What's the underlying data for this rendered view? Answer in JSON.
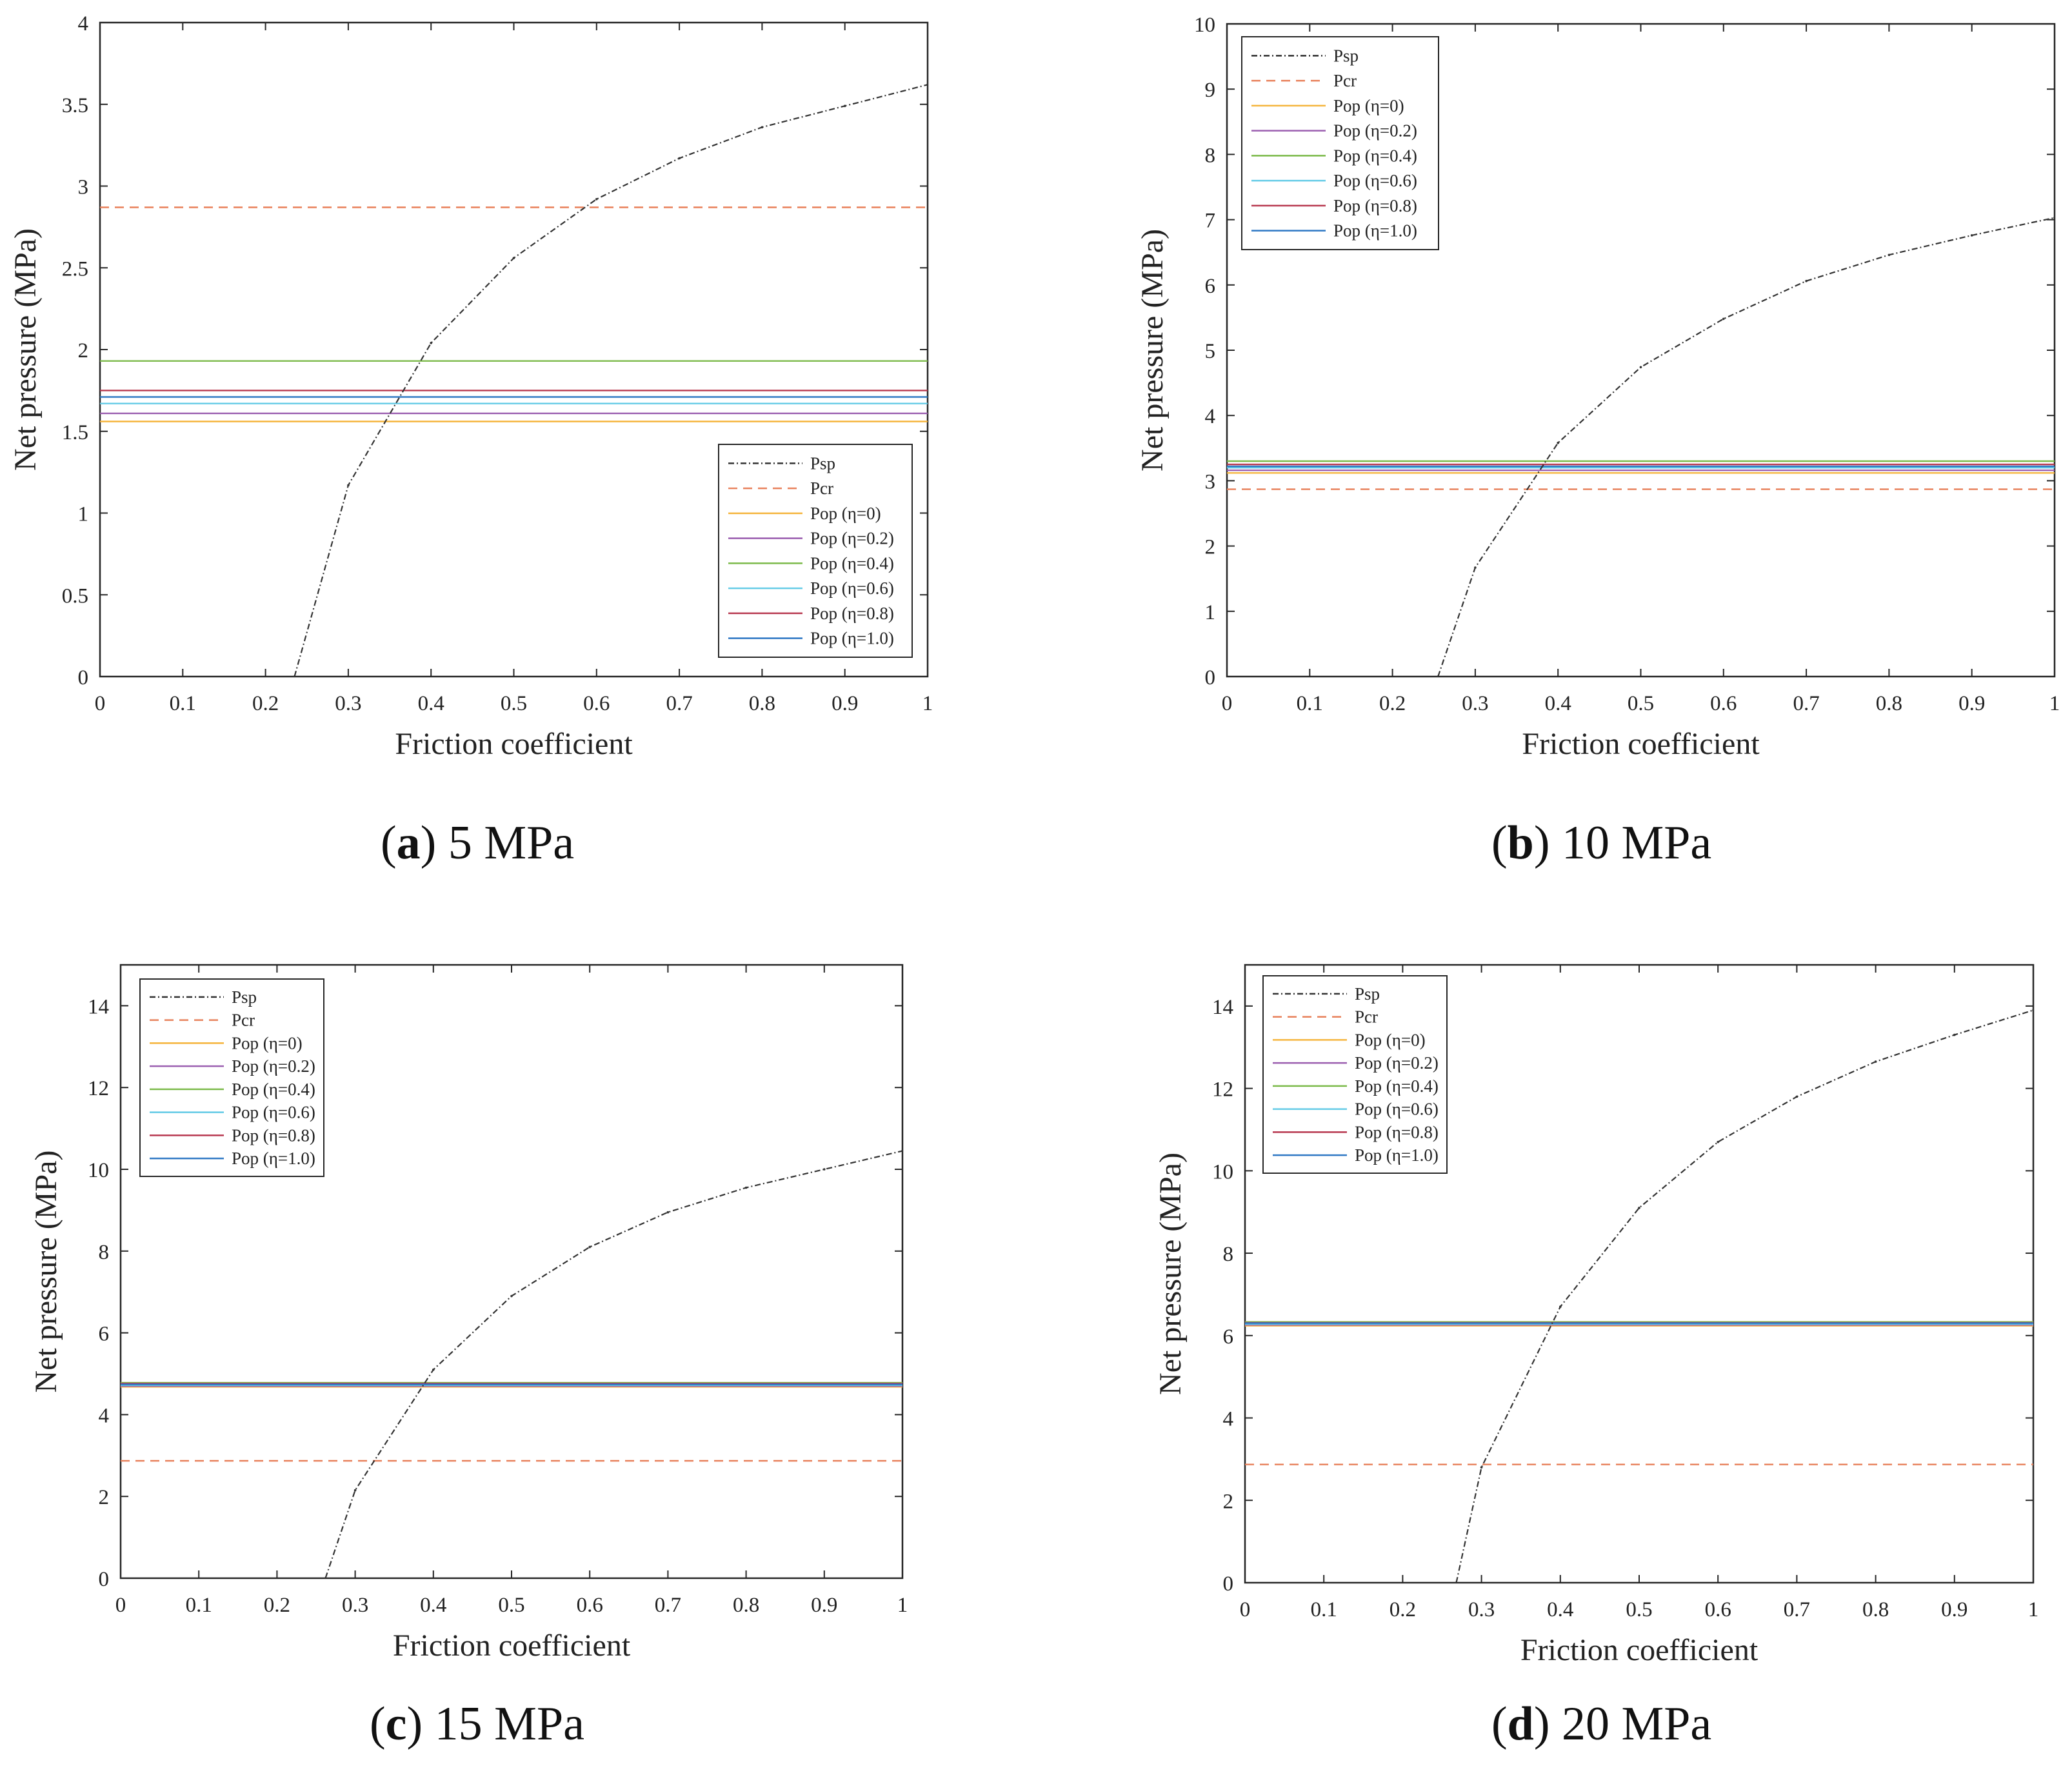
{
  "colors": {
    "psp": "#333333",
    "pcr": "#e8805a",
    "eta0": "#f5b43c",
    "eta02": "#9b5fb0",
    "eta04": "#7cba4a",
    "eta06": "#64cbe6",
    "eta08": "#b8384f",
    "eta10": "#2f78c4",
    "axis": "#262626",
    "background": "#ffffff"
  },
  "captions": [
    {
      "letter": "a",
      "text": "5 MPa"
    },
    {
      "letter": "b",
      "text": "10 MPa"
    },
    {
      "letter": "c",
      "text": "15 MPa"
    },
    {
      "letter": "d",
      "text": "20 MPa"
    }
  ],
  "chart_data": [
    {
      "type": "line",
      "caption": "(a) 5 MPa",
      "xlabel": "Friction coefficient",
      "ylabel": "Net pressure (MPa)",
      "xlim": [
        0,
        1
      ],
      "ylim": [
        0,
        4
      ],
      "xticks": [
        "0",
        "0.1",
        "0.2",
        "0.3",
        "0.4",
        "0.5",
        "0.6",
        "0.7",
        "0.8",
        "0.9",
        "1"
      ],
      "yticks": [
        "0",
        "0.5",
        "1",
        "1.5",
        "2",
        "2.5",
        "3",
        "3.5",
        "4"
      ],
      "legend_position": "bottom-right",
      "grid": false,
      "series": [
        {
          "name": "Psp",
          "style": "dashdot",
          "x": [
            0.235,
            0.3,
            0.4,
            0.5,
            0.6,
            0.7,
            0.8,
            0.9,
            1.0
          ],
          "y": [
            0,
            1.17,
            2.04,
            2.56,
            2.92,
            3.17,
            3.36,
            3.49,
            3.62
          ]
        },
        {
          "name": "Pcr",
          "style": "dashed",
          "x": [
            0,
            1
          ],
          "y": [
            2.87,
            2.87
          ]
        },
        {
          "name": "Pop (η=0)",
          "style": "solid",
          "x": [
            0,
            1
          ],
          "y": [
            1.56,
            1.56
          ]
        },
        {
          "name": "Pop (η=0.2)",
          "style": "solid",
          "x": [
            0,
            1
          ],
          "y": [
            1.61,
            1.61
          ]
        },
        {
          "name": "Pop (η=0.4)",
          "style": "solid",
          "x": [
            0,
            1
          ],
          "y": [
            1.93,
            1.93
          ]
        },
        {
          "name": "Pop (η=0.6)",
          "style": "solid",
          "x": [
            0,
            1
          ],
          "y": [
            1.67,
            1.67
          ]
        },
        {
          "name": "Pop (η=0.8)",
          "style": "solid",
          "x": [
            0,
            1
          ],
          "y": [
            1.75,
            1.75
          ]
        },
        {
          "name": "Pop (η=1.0)",
          "style": "solid",
          "x": [
            0,
            1
          ],
          "y": [
            1.71,
            1.71
          ]
        }
      ]
    },
    {
      "type": "line",
      "caption": "(b) 10 MPa",
      "xlabel": "Friction coefficient",
      "ylabel": "Net pressure (MPa)",
      "xlim": [
        0,
        1
      ],
      "ylim": [
        0,
        10
      ],
      "xticks": [
        "0",
        "0.1",
        "0.2",
        "0.3",
        "0.4",
        "0.5",
        "0.6",
        "0.7",
        "0.8",
        "0.9",
        "1"
      ],
      "yticks": [
        "0",
        "1",
        "2",
        "3",
        "4",
        "5",
        "6",
        "7",
        "8",
        "9",
        "10"
      ],
      "legend_position": "top-left",
      "grid": false,
      "series": [
        {
          "name": "Psp",
          "style": "dashdot",
          "x": [
            0.255,
            0.3,
            0.4,
            0.5,
            0.6,
            0.7,
            0.8,
            0.9,
            1.0
          ],
          "y": [
            0,
            1.67,
            3.58,
            4.74,
            5.48,
            6.06,
            6.46,
            6.76,
            7.03
          ]
        },
        {
          "name": "Pcr",
          "style": "dashed",
          "x": [
            0,
            1
          ],
          "y": [
            2.87,
            2.87
          ]
        },
        {
          "name": "Pop (η=0)",
          "style": "solid",
          "x": [
            0,
            1
          ],
          "y": [
            3.12,
            3.12
          ]
        },
        {
          "name": "Pop (η=0.2)",
          "style": "solid",
          "x": [
            0,
            1
          ],
          "y": [
            3.16,
            3.16
          ]
        },
        {
          "name": "Pop (η=0.4)",
          "style": "solid",
          "x": [
            0,
            1
          ],
          "y": [
            3.3,
            3.3
          ]
        },
        {
          "name": "Pop (η=0.6)",
          "style": "solid",
          "x": [
            0,
            1
          ],
          "y": [
            3.2,
            3.2
          ]
        },
        {
          "name": "Pop (η=0.8)",
          "style": "solid",
          "x": [
            0,
            1
          ],
          "y": [
            3.25,
            3.25
          ]
        },
        {
          "name": "Pop (η=1.0)",
          "style": "solid",
          "x": [
            0,
            1
          ],
          "y": [
            3.22,
            3.22
          ]
        }
      ]
    },
    {
      "type": "line",
      "caption": "(c) 15 MPa",
      "xlabel": "Friction coefficient",
      "ylabel": "Net pressure (MPa)",
      "xlim": [
        0,
        1
      ],
      "ylim": [
        0,
        15
      ],
      "xticks": [
        "0",
        "0.1",
        "0.2",
        "0.3",
        "0.4",
        "0.5",
        "0.6",
        "0.7",
        "0.8",
        "0.9",
        "1"
      ],
      "yticks": [
        "0",
        "2",
        "4",
        "6",
        "8",
        "10",
        "12",
        "14"
      ],
      "legend_position": "top-left",
      "grid": false,
      "series": [
        {
          "name": "Psp",
          "style": "dashdot",
          "x": [
            0.262,
            0.3,
            0.4,
            0.5,
            0.6,
            0.7,
            0.8,
            0.9,
            1.0
          ],
          "y": [
            0,
            2.15,
            5.1,
            6.9,
            8.1,
            8.95,
            9.55,
            10.0,
            10.45
          ]
        },
        {
          "name": "Pcr",
          "style": "dashed",
          "x": [
            0,
            1
          ],
          "y": [
            2.87,
            2.87
          ]
        },
        {
          "name": "Pop (η=0)",
          "style": "solid",
          "x": [
            0,
            1
          ],
          "y": [
            4.68,
            4.68
          ]
        },
        {
          "name": "Pop (η=0.2)",
          "style": "solid",
          "x": [
            0,
            1
          ],
          "y": [
            4.7,
            4.7
          ]
        },
        {
          "name": "Pop (η=0.4)",
          "style": "solid",
          "x": [
            0,
            1
          ],
          "y": [
            4.78,
            4.78
          ]
        },
        {
          "name": "Pop (η=0.6)",
          "style": "solid",
          "x": [
            0,
            1
          ],
          "y": [
            4.72,
            4.72
          ]
        },
        {
          "name": "Pop (η=0.8)",
          "style": "solid",
          "x": [
            0,
            1
          ],
          "y": [
            4.76,
            4.76
          ]
        },
        {
          "name": "Pop (η=1.0)",
          "style": "solid",
          "x": [
            0,
            1
          ],
          "y": [
            4.74,
            4.74
          ]
        }
      ]
    },
    {
      "type": "line",
      "caption": "(d) 20 MPa",
      "xlabel": "Friction coefficient",
      "ylabel": "Net pressure (MPa)",
      "xlim": [
        0,
        1
      ],
      "ylim": [
        0,
        15
      ],
      "xticks": [
        "0",
        "0.1",
        "0.2",
        "0.3",
        "0.4",
        "0.5",
        "0.6",
        "0.7",
        "0.8",
        "0.9",
        "1"
      ],
      "yticks": [
        "0",
        "2",
        "4",
        "6",
        "8",
        "10",
        "12",
        "14"
      ],
      "legend_position": "top-left",
      "grid": false,
      "series": [
        {
          "name": "Psp",
          "style": "dashdot",
          "x": [
            0.268,
            0.3,
            0.4,
            0.5,
            0.6,
            0.7,
            0.8,
            0.9,
            1.0
          ],
          "y": [
            0,
            2.8,
            6.7,
            9.1,
            10.7,
            11.8,
            12.65,
            13.3,
            13.9
          ]
        },
        {
          "name": "Pcr",
          "style": "dashed",
          "x": [
            0,
            1
          ],
          "y": [
            2.87,
            2.87
          ]
        },
        {
          "name": "Pop (η=0)",
          "style": "solid",
          "x": [
            0,
            1
          ],
          "y": [
            6.24,
            6.24
          ]
        },
        {
          "name": "Pop (η=0.2)",
          "style": "solid",
          "x": [
            0,
            1
          ],
          "y": [
            6.26,
            6.26
          ]
        },
        {
          "name": "Pop (η=0.4)",
          "style": "solid",
          "x": [
            0,
            1
          ],
          "y": [
            6.33,
            6.33
          ]
        },
        {
          "name": "Pop (η=0.6)",
          "style": "solid",
          "x": [
            0,
            1
          ],
          "y": [
            6.28,
            6.28
          ]
        },
        {
          "name": "Pop (η=0.8)",
          "style": "solid",
          "x": [
            0,
            1
          ],
          "y": [
            6.31,
            6.31
          ]
        },
        {
          "name": "Pop (η=1.0)",
          "style": "solid",
          "x": [
            0,
            1
          ],
          "y": [
            6.3,
            6.3
          ]
        }
      ]
    }
  ]
}
